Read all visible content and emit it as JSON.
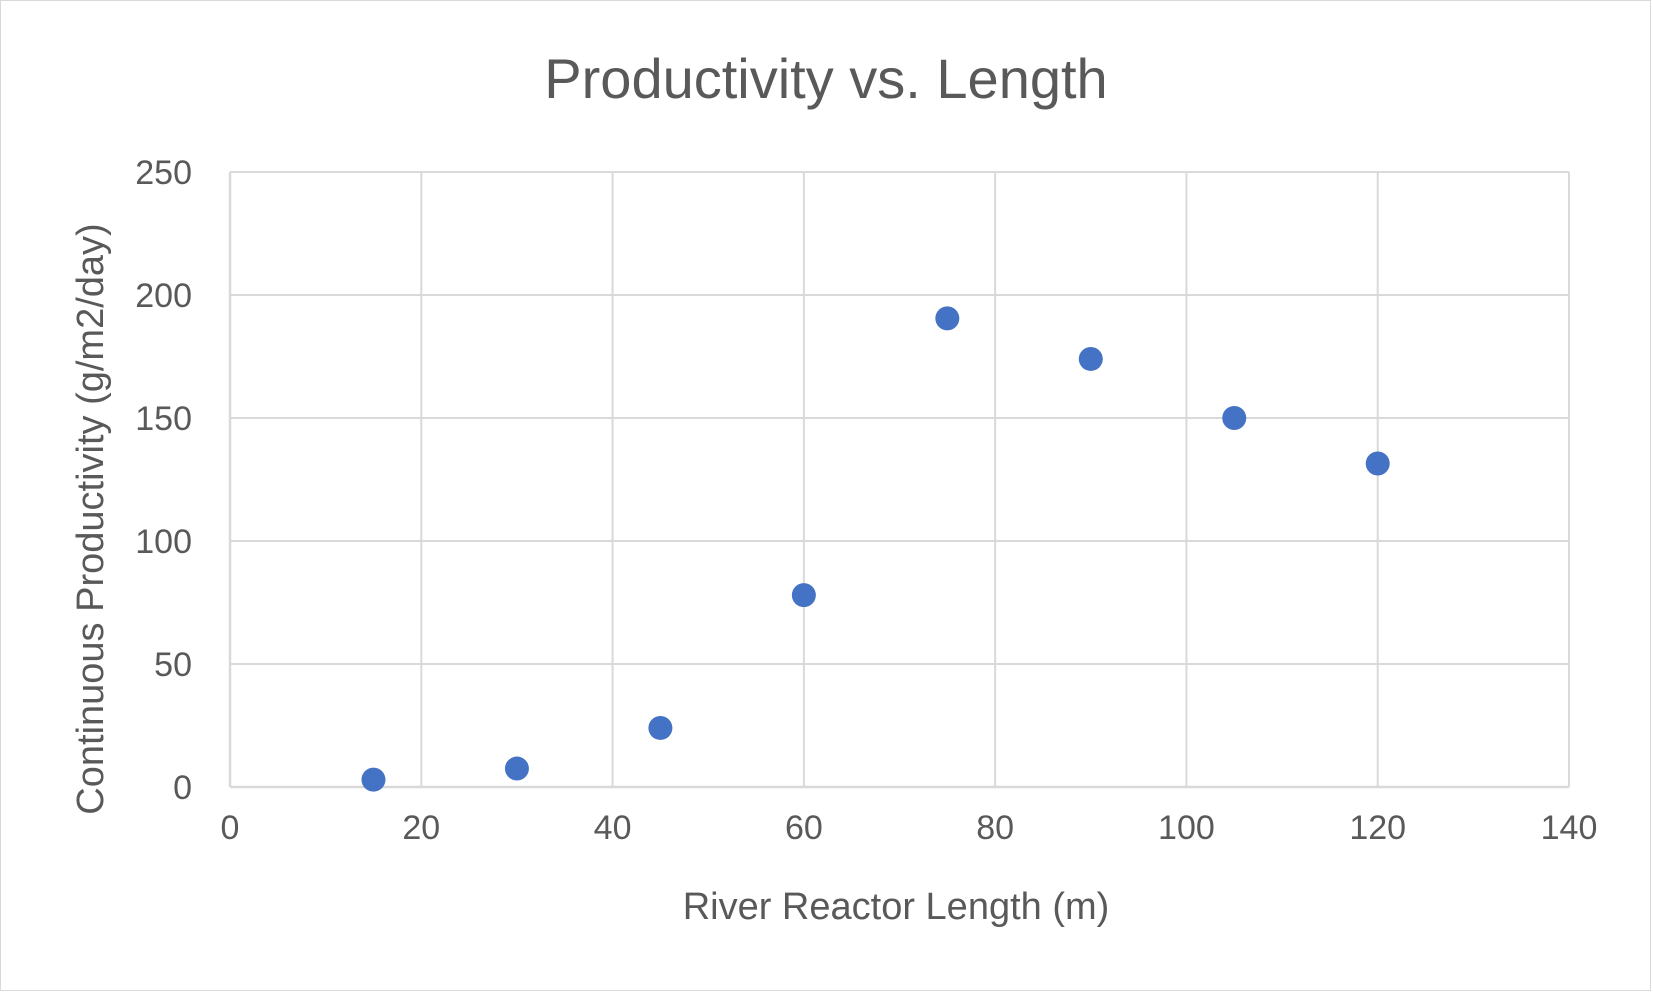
{
  "chart_data": {
    "type": "scatter",
    "title": "Productivity vs. Length",
    "xlabel": "River Reactor Length (m)",
    "ylabel": "Continuous Productivity (g/m2/day)",
    "xlim": [
      0,
      140
    ],
    "ylim": [
      0,
      250
    ],
    "x_ticks": [
      0,
      20,
      40,
      60,
      80,
      100,
      120,
      140
    ],
    "y_ticks": [
      0,
      50,
      100,
      150,
      200,
      250
    ],
    "x_tick_labels": [
      "0",
      "20",
      "40",
      "60",
      "80",
      "100",
      "120",
      "140"
    ],
    "y_tick_labels": [
      "0",
      "50",
      "100",
      "150",
      "200",
      "250"
    ],
    "grid": true,
    "legend": "none",
    "marker_color": "#4472c4",
    "series": [
      {
        "points": [
          {
            "x": 15,
            "y": 3
          },
          {
            "x": 30,
            "y": 7.5
          },
          {
            "x": 45,
            "y": 24
          },
          {
            "x": 60,
            "y": 78
          },
          {
            "x": 75,
            "y": 190.5
          },
          {
            "x": 90,
            "y": 174
          },
          {
            "x": 105,
            "y": 150
          },
          {
            "x": 120,
            "y": 131.5
          }
        ]
      }
    ]
  }
}
